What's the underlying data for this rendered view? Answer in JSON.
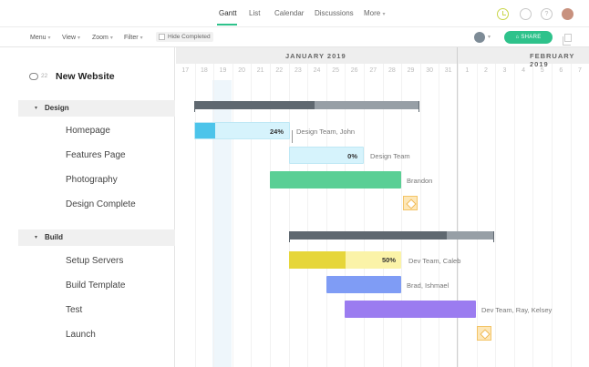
{
  "nav": {
    "tabs": [
      {
        "label": "Gantt",
        "active": true
      },
      {
        "label": "List"
      },
      {
        "label": "Calendar"
      },
      {
        "label": "Discussions"
      },
      {
        "label": "More",
        "caret": "▾"
      }
    ],
    "help_glyph": "?"
  },
  "toolbar": {
    "menu": "Menu",
    "view": "View",
    "zoom": "Zoom",
    "filter": "Filter",
    "hide_completed": "Hide Completed",
    "share": "⌂ SHARE",
    "caret": "▾"
  },
  "project": {
    "name": "New Website",
    "comment_count": "22"
  },
  "sections": [
    {
      "name": "Design",
      "caret": "▾",
      "tasks": [
        {
          "name": "Homepage",
          "percent": "24%",
          "assignee": "Design Team, John"
        },
        {
          "name": "Features Page",
          "percent": "0%",
          "assignee": "Design Team"
        },
        {
          "name": "Photography",
          "assignee": "Brandon"
        },
        {
          "name": "Design Complete",
          "milestone": true
        }
      ]
    },
    {
      "name": "Build",
      "caret": "▾",
      "tasks": [
        {
          "name": "Setup Servers",
          "percent": "50%",
          "assignee": "Dev Team, Caleb"
        },
        {
          "name": "Build Template",
          "assignee": "Brad, Ishmael"
        },
        {
          "name": "Test",
          "assignee": "Dev Team, Ray, Kelsey"
        },
        {
          "name": "Launch",
          "milestone": true
        }
      ]
    }
  ],
  "timeline": {
    "months": [
      "JANUARY 2019",
      "FEBRUARY 2019"
    ],
    "days": [
      "17",
      "18",
      "19",
      "20",
      "21",
      "22",
      "23",
      "24",
      "25",
      "26",
      "27",
      "28",
      "29",
      "30",
      "31",
      "1",
      "2",
      "3",
      "4",
      "5",
      "6",
      "7"
    ],
    "today": "19"
  },
  "colors": {
    "accent": "#2ec28b",
    "homepage_progress": "#4cc4ea",
    "homepage_rest": "#d6f3fc",
    "features": "#d6f3fc",
    "photography": "#5acf95",
    "setup_progress": "#e6d63a",
    "setup_rest": "#fbf3a8",
    "build_template": "#7f9cf5",
    "test": "#9b7cf0",
    "summary_dark": "#5f6870",
    "summary_light": "#979fa6"
  }
}
